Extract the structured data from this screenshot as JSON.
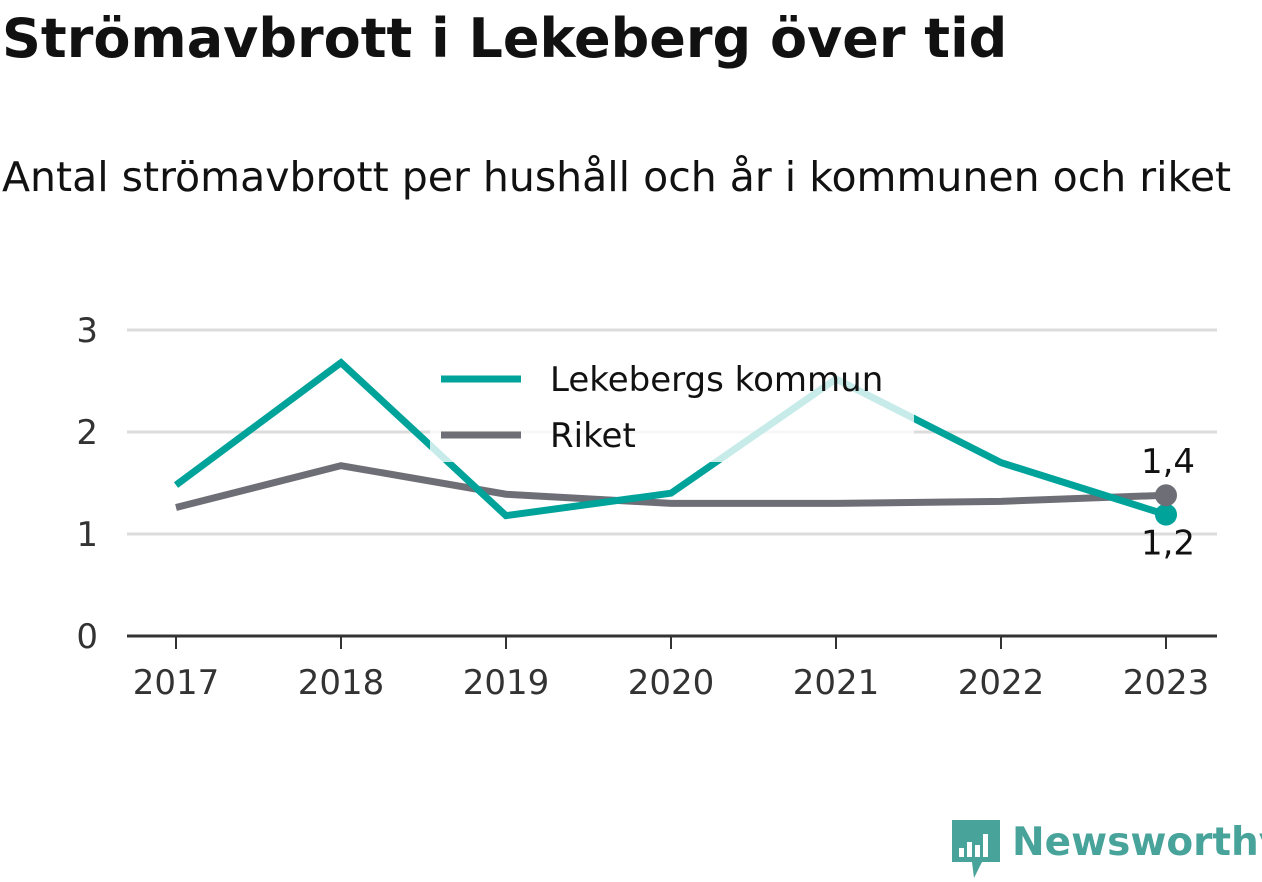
{
  "title": "Strömavbrott i Lekeberg över tid",
  "subtitle": "Antal strömavbrott per hushåll och år i kommunen och riket",
  "brand": {
    "name": "Newsworthy",
    "icon": "newsworthy-logo-icon",
    "color": "#48a39a"
  },
  "chart_data": {
    "type": "line",
    "x": [
      "2017",
      "2018",
      "2019",
      "2020",
      "2021",
      "2022",
      "2023"
    ],
    "ylim": [
      0,
      3
    ],
    "yticks": [
      "0",
      "1",
      "2",
      "3"
    ],
    "grid": true,
    "legend_position": "top-center",
    "series": [
      {
        "name": "Lekebergs kommun",
        "color": "#00a39a",
        "values": [
          1.48,
          2.68,
          1.18,
          1.4,
          2.52,
          1.7,
          1.19
        ],
        "end_label": "1,2"
      },
      {
        "name": "Riket",
        "color": "#6e6e76",
        "values": [
          1.26,
          1.67,
          1.39,
          1.3,
          1.3,
          1.32,
          1.38
        ],
        "end_label": "1,4"
      }
    ]
  }
}
